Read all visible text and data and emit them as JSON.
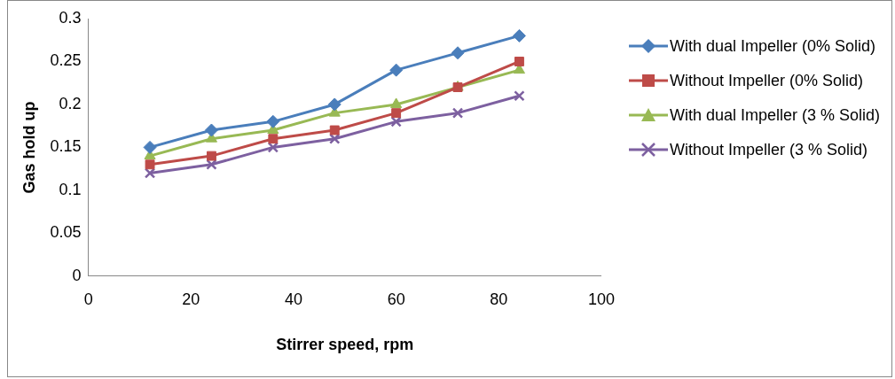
{
  "chart_data": {
    "type": "line",
    "xlabel": "Stirrer speed, rpm",
    "ylabel": "Gas hold up",
    "x": [
      12,
      24,
      36,
      48,
      60,
      72,
      84
    ],
    "xlim": [
      0,
      100
    ],
    "xticks": [
      0,
      20,
      40,
      60,
      80,
      100
    ],
    "ylim": [
      0,
      0.3
    ],
    "yticks": [
      0,
      0.05,
      0.1,
      0.15,
      0.2,
      0.25,
      0.3
    ],
    "grid": false,
    "legend": "right",
    "line_style": "solid",
    "series": [
      {
        "name": "With dual Impeller (0% Solid)",
        "color": "#4a7ebb",
        "marker": "diamond",
        "values": [
          0.15,
          0.17,
          0.18,
          0.2,
          0.24,
          0.26,
          0.28
        ]
      },
      {
        "name": "Without Impeller (0% Solid)",
        "color": "#be4b48",
        "marker": "square",
        "values": [
          0.13,
          0.14,
          0.16,
          0.17,
          0.19,
          0.22,
          0.25
        ]
      },
      {
        "name": "With dual Impeller (3 % Solid)",
        "color": "#98b954",
        "marker": "triangle",
        "values": [
          0.14,
          0.16,
          0.17,
          0.19,
          0.2,
          0.22,
          0.24
        ]
      },
      {
        "name": "Without Impeller (3 % Solid)",
        "color": "#7d60a0",
        "marker": "cross",
        "values": [
          0.12,
          0.13,
          0.15,
          0.16,
          0.18,
          0.19,
          0.21
        ]
      }
    ]
  }
}
